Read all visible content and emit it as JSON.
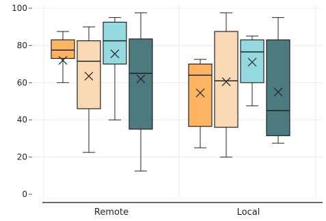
{
  "chart_data": {
    "type": "box",
    "categories": [
      "Remote",
      "Local"
    ],
    "ylim": [
      0,
      100
    ],
    "yticks": [
      0,
      20,
      40,
      60,
      80,
      100
    ],
    "grid": true,
    "legend": "none",
    "colors": [
      "#FDB462",
      "#F8D9B3",
      "#94D8E0",
      "#4C7A7E"
    ],
    "series": [
      {
        "color": "#FDB462",
        "boxes": [
          {
            "min": 60,
            "q1": 73,
            "median": 77.5,
            "q3": 83,
            "max": 87.5,
            "mean": 72
          },
          {
            "min": 25,
            "q1": 36.5,
            "median": 64,
            "q3": 70,
            "max": 72.5,
            "mean": 54.5
          }
        ]
      },
      {
        "color": "#F8D9B3",
        "boxes": [
          {
            "min": 22.5,
            "q1": 46,
            "median": 71.5,
            "q3": 82.5,
            "max": 90,
            "mean": 63.5
          },
          {
            "min": 20,
            "q1": 36,
            "median": 61,
            "q3": 87.5,
            "max": 97.5,
            "mean": 60.5
          }
        ]
      },
      {
        "color": "#94D8E0",
        "boxes": [
          {
            "min": 40,
            "q1": 70,
            "median": 82.5,
            "q3": 92.5,
            "max": 95,
            "mean": 75.5
          },
          {
            "min": 47.5,
            "q1": 60,
            "median": 76.5,
            "q3": 83,
            "max": 85,
            "mean": 71
          }
        ]
      },
      {
        "color": "#4C7A7E",
        "boxes": [
          {
            "min": 12.5,
            "q1": 35,
            "median": 65,
            "q3": 83.5,
            "max": 97.5,
            "mean": 62
          },
          {
            "min": 27.5,
            "q1": 31.5,
            "median": 45,
            "q3": 83,
            "max": 95,
            "mean": 55
          }
        ]
      }
    ]
  }
}
